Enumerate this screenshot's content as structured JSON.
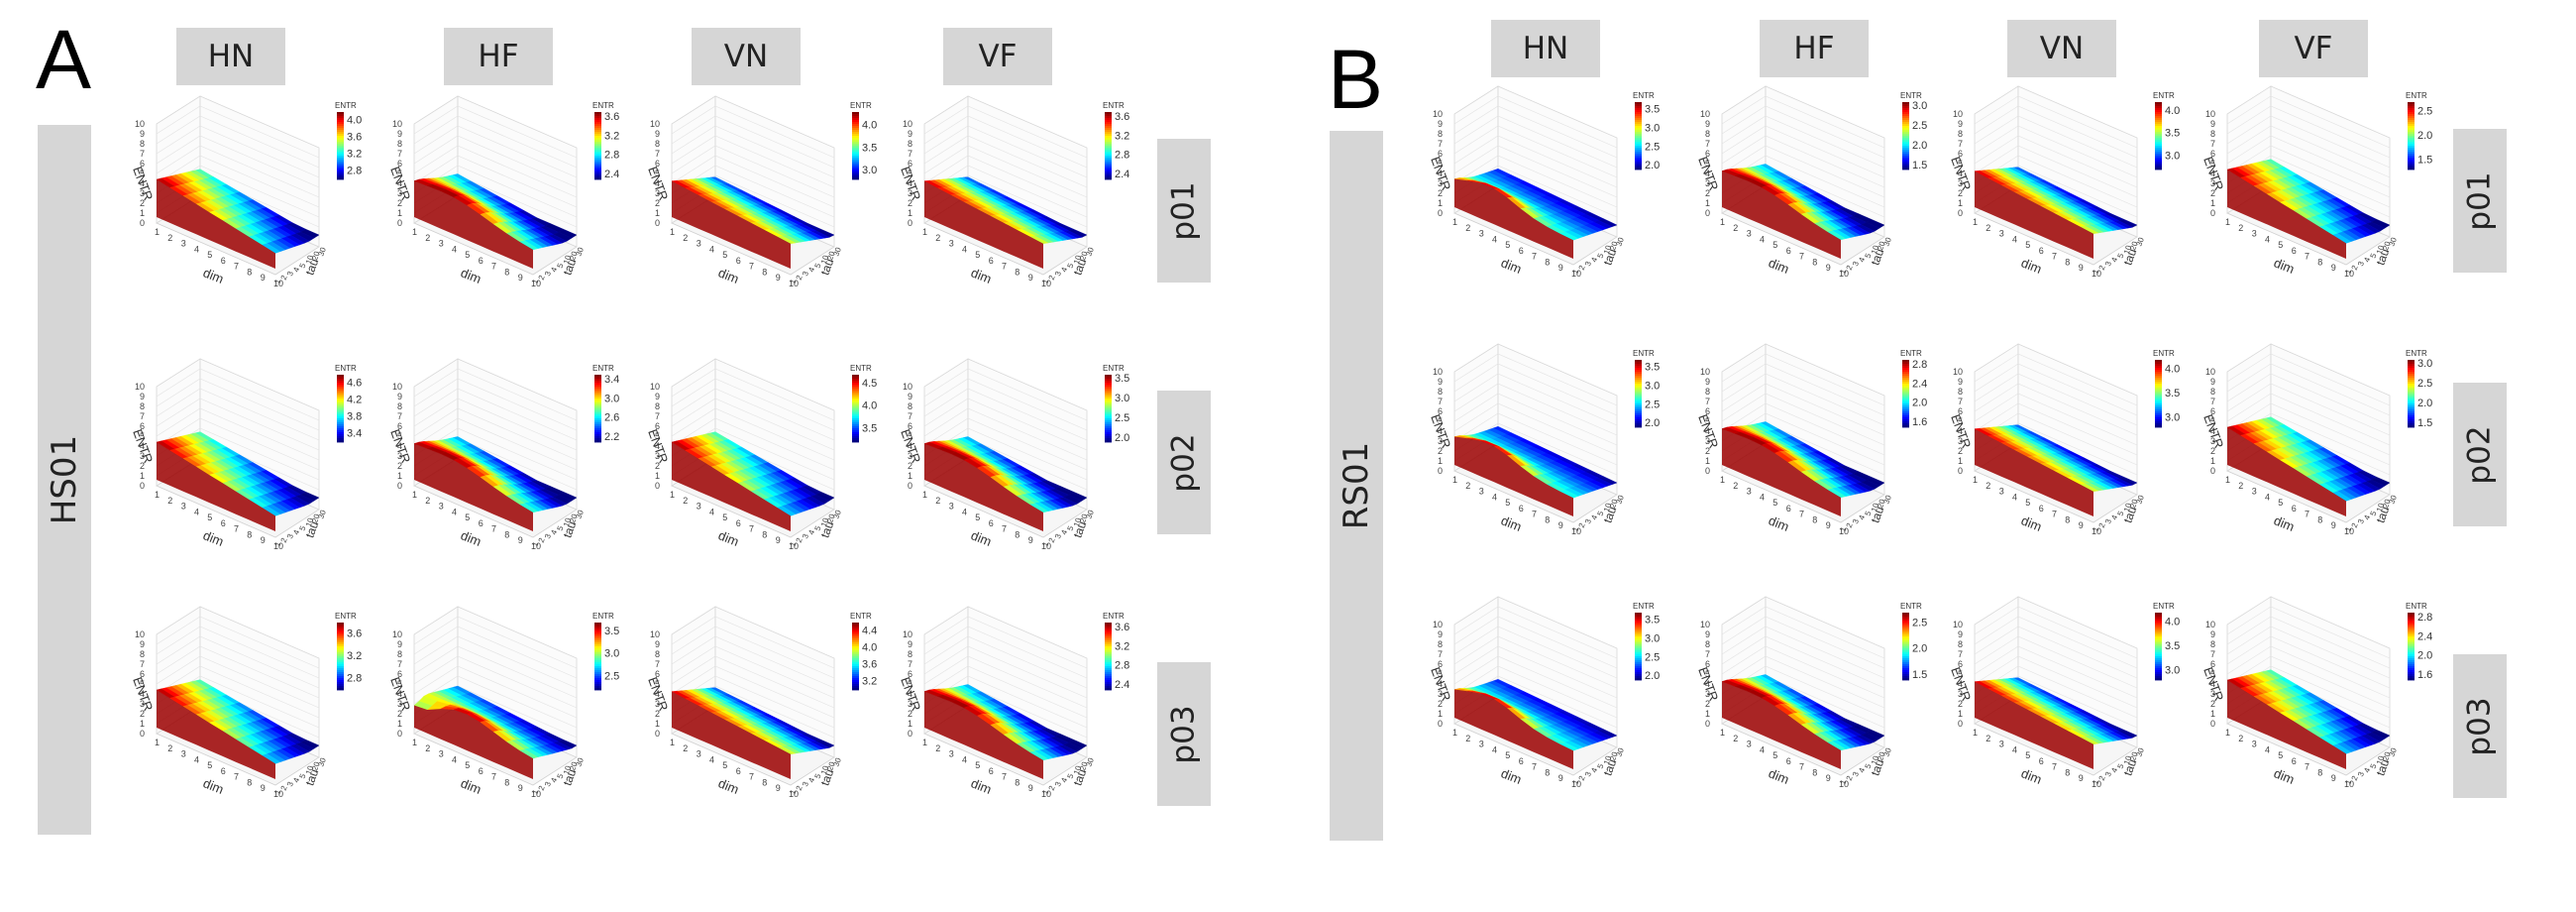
{
  "panels": [
    {
      "label": "A",
      "subject": "HS01",
      "columns": [
        "HN",
        "HF",
        "VN",
        "VF"
      ],
      "rows": [
        "p01",
        "p02",
        "p03"
      ]
    },
    {
      "label": "B",
      "subject": "RS01",
      "columns": [
        "HN",
        "HF",
        "VN",
        "VF"
      ],
      "rows": [
        "p01",
        "p02",
        "p03"
      ]
    }
  ],
  "axes": {
    "x_label": "dim",
    "y_label": "tau",
    "z_label": "ENTR",
    "legend_title": "ENTR",
    "x_ticks": [
      "1",
      "2",
      "3",
      "4",
      "5",
      "6",
      "7",
      "8",
      "9",
      "10"
    ],
    "y_ticks": [
      "1",
      "2",
      "3",
      "4",
      "5",
      "10",
      "20",
      "30"
    ],
    "z_ticks": [
      "0",
      "1",
      "2",
      "3",
      "4",
      "5",
      "6",
      "7",
      "8",
      "9",
      "10"
    ]
  },
  "chart_data": [
    {
      "type": "surface3d",
      "title": "",
      "xlabel": "dim",
      "ylabel": "tau",
      "zlabel": "ENTR",
      "x": [
        1,
        2,
        3,
        4,
        5,
        6,
        7,
        8,
        9,
        10
      ],
      "y_ticks": [
        1,
        2,
        3,
        4,
        5,
        10,
        20,
        30
      ],
      "zlim": [
        0,
        10
      ],
      "colormap": "jet",
      "facets": [
        {
          "subject": "HS01",
          "condition": "HN",
          "trial": "p01",
          "colorbar_ticks": [
            4.0,
            3.6,
            3.2,
            2.8
          ],
          "range": [
            2.6,
            4.2
          ],
          "profile": 0
        },
        {
          "subject": "HS01",
          "condition": "HF",
          "trial": "p01",
          "colorbar_ticks": [
            3.6,
            3.2,
            2.8,
            2.4
          ],
          "range": [
            2.3,
            3.7
          ],
          "profile": 1
        },
        {
          "subject": "HS01",
          "condition": "VN",
          "trial": "p01",
          "colorbar_ticks": [
            4.0,
            3.5,
            3.0
          ],
          "range": [
            2.8,
            4.3
          ],
          "profile": 2
        },
        {
          "subject": "HS01",
          "condition": "VF",
          "trial": "p01",
          "colorbar_ticks": [
            3.6,
            3.2,
            2.8,
            2.4
          ],
          "range": [
            2.3,
            3.7
          ],
          "profile": 2
        },
        {
          "subject": "HS01",
          "condition": "HN",
          "trial": "p02",
          "colorbar_ticks": [
            4.6,
            4.2,
            3.8,
            3.4
          ],
          "range": [
            3.2,
            4.8
          ],
          "profile": 0
        },
        {
          "subject": "HS01",
          "condition": "HF",
          "trial": "p02",
          "colorbar_ticks": [
            3.4,
            3.0,
            2.6,
            2.2
          ],
          "range": [
            2.1,
            3.5
          ],
          "profile": 1
        },
        {
          "subject": "HS01",
          "condition": "VN",
          "trial": "p02",
          "colorbar_ticks": [
            4.5,
            4.0,
            3.5
          ],
          "range": [
            3.2,
            4.7
          ],
          "profile": 0
        },
        {
          "subject": "HS01",
          "condition": "VF",
          "trial": "p02",
          "colorbar_ticks": [
            3.5,
            3.0,
            2.5,
            2.0
          ],
          "range": [
            1.9,
            3.6
          ],
          "profile": 1
        },
        {
          "subject": "HS01",
          "condition": "HN",
          "trial": "p03",
          "colorbar_ticks": [
            3.6,
            3.2,
            2.8
          ],
          "range": [
            2.6,
            3.8
          ],
          "profile": 0
        },
        {
          "subject": "HS01",
          "condition": "HF",
          "trial": "p03",
          "colorbar_ticks": [
            3.5,
            3.0,
            2.5
          ],
          "range": [
            2.2,
            3.7
          ],
          "profile": 3
        },
        {
          "subject": "HS01",
          "condition": "VN",
          "trial": "p03",
          "colorbar_ticks": [
            4.4,
            4.0,
            3.6,
            3.2
          ],
          "range": [
            3.0,
            4.6
          ],
          "profile": 2
        },
        {
          "subject": "HS01",
          "condition": "VF",
          "trial": "p03",
          "colorbar_ticks": [
            3.6,
            3.2,
            2.8,
            2.4
          ],
          "range": [
            2.3,
            3.7
          ],
          "profile": 1
        },
        {
          "subject": "RS01",
          "condition": "HN",
          "trial": "p01",
          "colorbar_ticks": [
            3.5,
            3.0,
            2.5,
            2.0
          ],
          "range": [
            1.9,
            3.7
          ],
          "profile": 4
        },
        {
          "subject": "RS01",
          "condition": "HF",
          "trial": "p01",
          "colorbar_ticks": [
            3.0,
            2.5,
            2.0,
            1.5
          ],
          "range": [
            1.4,
            3.1
          ],
          "profile": 1
        },
        {
          "subject": "RS01",
          "condition": "VN",
          "trial": "p01",
          "colorbar_ticks": [
            4.0,
            3.5,
            3.0
          ],
          "range": [
            2.7,
            4.2
          ],
          "profile": 2
        },
        {
          "subject": "RS01",
          "condition": "VF",
          "trial": "p01",
          "colorbar_ticks": [
            2.5,
            2.0,
            1.5
          ],
          "range": [
            1.3,
            2.7
          ],
          "profile": 0
        },
        {
          "subject": "RS01",
          "condition": "HN",
          "trial": "p02",
          "colorbar_ticks": [
            3.5,
            3.0,
            2.5,
            2.0
          ],
          "range": [
            1.9,
            3.7
          ],
          "profile": 4
        },
        {
          "subject": "RS01",
          "condition": "HF",
          "trial": "p02",
          "colorbar_ticks": [
            2.8,
            2.4,
            2.0,
            1.6
          ],
          "range": [
            1.5,
            2.9
          ],
          "profile": 1
        },
        {
          "subject": "RS01",
          "condition": "VN",
          "trial": "p02",
          "colorbar_ticks": [
            4.0,
            3.5,
            3.0
          ],
          "range": [
            2.8,
            4.2
          ],
          "profile": 2
        },
        {
          "subject": "RS01",
          "condition": "VF",
          "trial": "p02",
          "colorbar_ticks": [
            3.0,
            2.5,
            2.0,
            1.5
          ],
          "range": [
            1.4,
            3.1
          ],
          "profile": 0
        },
        {
          "subject": "RS01",
          "condition": "HN",
          "trial": "p03",
          "colorbar_ticks": [
            3.5,
            3.0,
            2.5,
            2.0
          ],
          "range": [
            1.9,
            3.7
          ],
          "profile": 4
        },
        {
          "subject": "RS01",
          "condition": "HF",
          "trial": "p03",
          "colorbar_ticks": [
            2.5,
            2.0,
            1.5
          ],
          "range": [
            1.4,
            2.7
          ],
          "profile": 1
        },
        {
          "subject": "RS01",
          "condition": "VN",
          "trial": "p03",
          "colorbar_ticks": [
            4.0,
            3.5,
            3.0
          ],
          "range": [
            2.8,
            4.2
          ],
          "profile": 2
        },
        {
          "subject": "RS01",
          "condition": "VF",
          "trial": "p03",
          "colorbar_ticks": [
            2.8,
            2.4,
            2.0,
            1.6
          ],
          "range": [
            1.5,
            2.9
          ],
          "profile": 0
        }
      ]
    }
  ]
}
